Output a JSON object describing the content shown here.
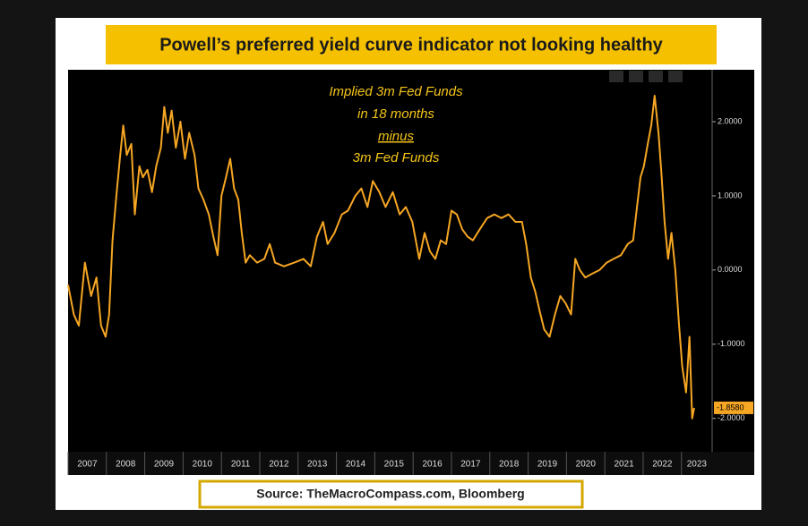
{
  "chart_data": {
    "type": "line",
    "title": "Powell’s preferred yield curve indicator not looking healthy",
    "annotation": [
      "Implied 3m Fed Funds",
      "in 18 months",
      "minus",
      "3m Fed Funds"
    ],
    "source": "Source: TheMacroCompass.com, Bloomberg",
    "color": "#f5a623",
    "x": [
      2007.0,
      2007.15,
      2007.28,
      2007.44,
      2007.6,
      2007.74,
      2007.86,
      2007.98,
      2008.07,
      2008.16,
      2008.26,
      2008.35,
      2008.44,
      2008.53,
      2008.65,
      2008.74,
      2008.86,
      2008.95,
      2009.07,
      2009.19,
      2009.3,
      2009.42,
      2009.51,
      2009.6,
      2009.7,
      2009.81,
      2009.93,
      2010.05,
      2010.16,
      2010.3,
      2010.4,
      2010.53,
      2010.67,
      2010.79,
      2010.9,
      2011.0,
      2011.12,
      2011.23,
      2011.33,
      2011.44,
      2011.53,
      2011.63,
      2011.74,
      2011.93,
      2012.12,
      2012.26,
      2012.4,
      2012.63,
      2012.9,
      2013.14,
      2013.33,
      2013.49,
      2013.65,
      2013.77,
      2013.95,
      2014.14,
      2014.3,
      2014.49,
      2014.65,
      2014.81,
      2014.95,
      2015.12,
      2015.28,
      2015.47,
      2015.65,
      2015.81,
      2015.98,
      2016.16,
      2016.3,
      2016.44,
      2016.58,
      2016.72,
      2016.86,
      2017.0,
      2017.14,
      2017.28,
      2017.42,
      2017.56,
      2017.74,
      2017.93,
      2018.12,
      2018.3,
      2018.49,
      2018.67,
      2018.84,
      2018.95,
      2019.07,
      2019.19,
      2019.3,
      2019.42,
      2019.56,
      2019.7,
      2019.84,
      2019.98,
      2020.12,
      2020.23,
      2020.35,
      2020.49,
      2020.67,
      2020.86,
      2021.05,
      2021.23,
      2021.42,
      2021.6,
      2021.74,
      2021.84,
      2021.93,
      2022.02,
      2022.12,
      2022.21,
      2022.3,
      2022.4,
      2022.47,
      2022.56,
      2022.65,
      2022.74,
      2022.84,
      2022.93,
      2023.02,
      2023.12,
      2023.21,
      2023.28,
      2023.33
    ],
    "values": [
      -0.2,
      -0.6,
      -0.75,
      0.1,
      -0.35,
      -0.1,
      -0.75,
      -0.9,
      -0.6,
      0.4,
      1.0,
      1.5,
      1.95,
      1.55,
      1.7,
      0.75,
      1.4,
      1.25,
      1.35,
      1.05,
      1.4,
      1.65,
      2.2,
      1.85,
      2.15,
      1.65,
      2.0,
      1.5,
      1.85,
      1.55,
      1.1,
      0.95,
      0.75,
      0.45,
      0.2,
      1.0,
      1.25,
      1.5,
      1.1,
      0.95,
      0.5,
      0.1,
      0.2,
      0.1,
      0.15,
      0.35,
      0.1,
      0.05,
      0.1,
      0.15,
      0.05,
      0.45,
      0.65,
      0.35,
      0.5,
      0.75,
      0.8,
      1.0,
      1.1,
      0.85,
      1.2,
      1.05,
      0.85,
      1.05,
      0.75,
      0.85,
      0.65,
      0.15,
      0.5,
      0.25,
      0.15,
      0.4,
      0.35,
      0.8,
      0.75,
      0.55,
      0.45,
      0.4,
      0.55,
      0.7,
      0.75,
      0.7,
      0.75,
      0.65,
      0.65,
      0.35,
      -0.1,
      -0.3,
      -0.55,
      -0.8,
      -0.9,
      -0.6,
      -0.35,
      -0.45,
      -0.6,
      0.15,
      0.0,
      -0.1,
      -0.05,
      0.0,
      0.1,
      0.15,
      0.2,
      0.35,
      0.4,
      0.85,
      1.25,
      1.4,
      1.7,
      1.95,
      2.35,
      1.85,
      1.35,
      0.65,
      0.15,
      0.5,
      0.0,
      -0.7,
      -1.3,
      -1.65,
      -0.9,
      -2.0,
      -1.858
    ],
    "value_labels": {
      "122": "-1.8580"
    },
    "xlim": [
      2007,
      2023.8
    ],
    "xticks": [
      2007,
      2008,
      2009,
      2010,
      2011,
      2012,
      2013,
      2014,
      2015,
      2016,
      2017,
      2018,
      2019,
      2020,
      2021,
      2022,
      2023
    ],
    "ylim": [
      -2.45,
      2.7
    ],
    "yticks": [
      {
        "value": -2,
        "label": "-2.0000"
      },
      {
        "value": -1,
        "label": "-1.0000"
      },
      {
        "value": 0,
        "label": "0.0000"
      },
      {
        "value": 1,
        "label": "1.0000"
      },
      {
        "value": 2,
        "label": "2.0000"
      }
    ]
  }
}
